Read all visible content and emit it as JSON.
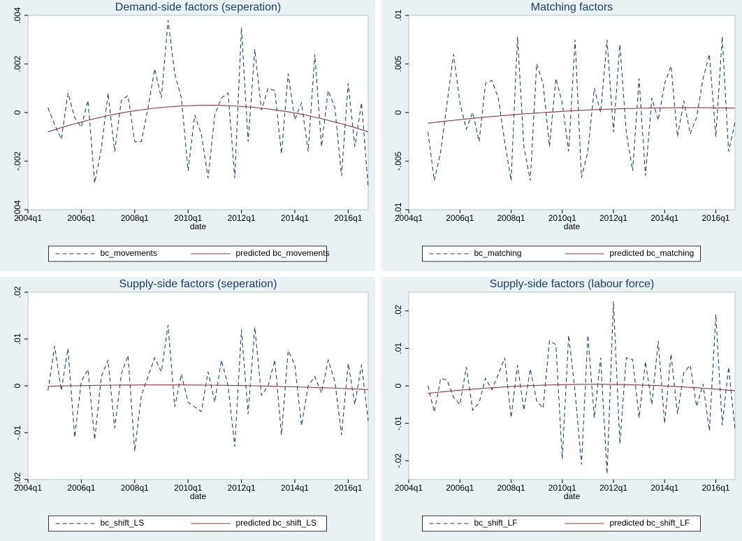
{
  "chart_data": [
    {
      "type": "line",
      "title": "Demand-side factors (seperation)",
      "x_label": "date",
      "x": [
        "2004q4",
        "2005q1",
        "2005q2",
        "2005q3",
        "2005q4",
        "2006q1",
        "2006q2",
        "2006q3",
        "2006q4",
        "2007q1",
        "2007q2",
        "2007q3",
        "2007q4",
        "2008q1",
        "2008q2",
        "2008q3",
        "2008q4",
        "2009q1",
        "2009q2",
        "2009q3",
        "2009q4",
        "2010q1",
        "2010q2",
        "2010q3",
        "2010q4",
        "2011q1",
        "2011q2",
        "2011q3",
        "2011q4",
        "2012q1",
        "2012q2",
        "2012q3",
        "2012q4",
        "2013q1",
        "2013q2",
        "2013q3",
        "2013q4",
        "2014q1",
        "2014q2",
        "2014q3",
        "2014q4",
        "2015q1",
        "2015q2",
        "2015q3",
        "2015q4",
        "2016q1",
        "2016q2",
        "2016q3",
        "2016q4"
      ],
      "xlim": [
        "2004q1",
        "2016q4"
      ],
      "xticks": [
        "2004q1",
        "2006q1",
        "2008q1",
        "2010q1",
        "2012q1",
        "2014q1",
        "2016q1"
      ],
      "ylim": [
        -0.004,
        0.004
      ],
      "yticks": [
        {
          "value": -0.004,
          "label": "-.004"
        },
        {
          "value": -0.002,
          "label": "-.002"
        },
        0,
        {
          "value": 0.002,
          "label": ".002"
        },
        {
          "value": 0.004,
          "label": ".004"
        }
      ],
      "grid": false,
      "series": [
        {
          "name": "bc_movements",
          "color": "#1a476f",
          "dashed": true,
          "values": [
            0.0002,
            -0.0005,
            -0.0011,
            0.0008,
            -0.0002,
            -0.0006,
            0.0005,
            -0.0029,
            -0.0015,
            0.0008,
            -0.0016,
            0.0005,
            0.0007,
            -0.0012,
            -0.0012,
            0.0002,
            0.0018,
            0.0006,
            0.0038,
            0.0016,
            0.0006,
            -0.0024,
            -0.0001,
            -0.0009,
            -0.0027,
            -0.0001,
            0.0006,
            0.0008,
            -0.0027,
            0.0035,
            -0.0012,
            0.0026,
            0.0001,
            0.001,
            0.0009,
            -0.0017,
            0.0016,
            -0.0003,
            0.0004,
            -0.0016,
            0.0024,
            -0.0014,
            0.0009,
            0.0002,
            -0.0026,
            0.0012,
            -0.0014,
            0.0004,
            -0.0031
          ]
        },
        {
          "name": "predicted bc_movements",
          "color": "#90353b",
          "dashed": false,
          "values": [
            -0.00079,
            -0.00071,
            -0.00062,
            -0.00054,
            -0.00046,
            -0.00039,
            -0.00032,
            -0.00025,
            -0.00019,
            -0.00013,
            -7e-05,
            -2e-05,
            3e-05,
            7e-05,
            0.00011,
            0.00015,
            0.00018,
            0.00021,
            0.00023,
            0.00025,
            0.00027,
            0.00028,
            0.00029,
            0.0003,
            0.0003,
            0.0003,
            0.00029,
            0.00028,
            0.00027,
            0.00025,
            0.00023,
            0.00021,
            0.00018,
            0.00015,
            0.00011,
            7e-05,
            3e-05,
            -2e-05,
            -7e-05,
            -0.00013,
            -0.00019,
            -0.00025,
            -0.00032,
            -0.00039,
            -0.00046,
            -0.00054,
            -0.00062,
            -0.00071,
            -0.00079
          ]
        }
      ]
    },
    {
      "type": "line",
      "title": "Matching factors",
      "x_label": "date",
      "x": [
        "2004q4",
        "2005q1",
        "2005q2",
        "2005q3",
        "2005q4",
        "2006q1",
        "2006q2",
        "2006q3",
        "2006q4",
        "2007q1",
        "2007q2",
        "2007q3",
        "2007q4",
        "2008q1",
        "2008q2",
        "2008q3",
        "2008q4",
        "2009q1",
        "2009q2",
        "2009q3",
        "2009q4",
        "2010q1",
        "2010q2",
        "2010q3",
        "2010q4",
        "2011q1",
        "2011q2",
        "2011q3",
        "2011q4",
        "2012q1",
        "2012q2",
        "2012q3",
        "2012q4",
        "2013q1",
        "2013q2",
        "2013q3",
        "2013q4",
        "2014q1",
        "2014q2",
        "2014q3",
        "2014q4",
        "2015q1",
        "2015q2",
        "2015q3",
        "2015q4",
        "2016q1",
        "2016q2",
        "2016q3",
        "2016q4"
      ],
      "xlim": [
        "2004q1",
        "2016q4"
      ],
      "xticks": [
        "2004q1",
        "2006q1",
        "2008q1",
        "2010q1",
        "2012q1",
        "2014q1",
        "2016q1"
      ],
      "ylim": [
        -0.01,
        0.01
      ],
      "yticks": [
        {
          "value": -0.01,
          "label": "-.01"
        },
        {
          "value": -0.005,
          "label": "-.005"
        },
        0,
        {
          "value": 0.005,
          "label": ".005"
        },
        {
          "value": 0.01,
          "label": ".01"
        }
      ],
      "grid": false,
      "series": [
        {
          "name": "bc_matching",
          "color": "#1a476f",
          "dashed": true,
          "values": [
            -0.002,
            -0.007,
            -0.004,
            0.001,
            0.006,
            0.001,
            -0.0017,
            0,
            -0.003,
            0.003,
            0.0033,
            0.0015,
            -0.003,
            -0.007,
            0.0078,
            -0.0035,
            -0.007,
            0.005,
            0.003,
            -0.0035,
            0.0035,
            0.001,
            -0.004,
            0.0075,
            -0.0067,
            -0.004,
            0.0025,
            0,
            0.0075,
            -0.002,
            0.007,
            -0.002,
            -0.006,
            0.0035,
            -0.0065,
            0.0015,
            -0.0008,
            0.003,
            0.0048,
            -0.0025,
            0.0012,
            -0.0022,
            -0.0005,
            0.0035,
            0.006,
            -0.0025,
            0.0078,
            -0.004,
            -0.001
          ]
        },
        {
          "name": "predicted bc_matching",
          "color": "#90353b",
          "dashed": false,
          "values": [
            -0.0011,
            -0.00102,
            -0.00094,
            -0.00087,
            -0.0008,
            -0.00073,
            -0.00066,
            -0.0006,
            -0.00053,
            -0.00047,
            -0.00041,
            -0.00036,
            -0.0003,
            -0.00025,
            -0.00019,
            -0.00014,
            -9e-05,
            -5e-05,
            0,
            4e-05,
            8e-05,
            0.00012,
            0.00016,
            0.00019,
            0.00023,
            0.00026,
            0.00029,
            0.00031,
            0.00034,
            0.00036,
            0.00039,
            0.00041,
            0.00042,
            0.00044,
            0.00045,
            0.00047,
            0.00048,
            0.00048,
            0.00049,
            0.0005,
            0.0005,
            0.0005,
            0.0005,
            0.0005,
            0.00049,
            0.00048,
            0.00048,
            0.00047,
            0.00045
          ]
        }
      ]
    },
    {
      "type": "line",
      "title": "Supply-side factors (seperation)",
      "x_label": "date",
      "x": [
        "2004q4",
        "2005q1",
        "2005q2",
        "2005q3",
        "2005q4",
        "2006q1",
        "2006q2",
        "2006q3",
        "2006q4",
        "2007q1",
        "2007q2",
        "2007q3",
        "2007q4",
        "2008q1",
        "2008q2",
        "2008q3",
        "2008q4",
        "2009q1",
        "2009q2",
        "2009q3",
        "2009q4",
        "2010q1",
        "2010q2",
        "2010q3",
        "2010q4",
        "2011q1",
        "2011q2",
        "2011q3",
        "2011q4",
        "2012q1",
        "2012q2",
        "2012q3",
        "2012q4",
        "2013q1",
        "2013q2",
        "2013q3",
        "2013q4",
        "2014q1",
        "2014q2",
        "2014q3",
        "2014q4",
        "2015q1",
        "2015q2",
        "2015q3",
        "2015q4",
        "2016q1",
        "2016q2",
        "2016q3",
        "2016q4"
      ],
      "xlim": [
        "2004q1",
        "2016q4"
      ],
      "xticks": [
        "2004q1",
        "2006q1",
        "2008q1",
        "2010q1",
        "2012q1",
        "2014q1",
        "2016q1"
      ],
      "ylim": [
        -0.02,
        0.02
      ],
      "yticks": [
        {
          "value": -0.02,
          "label": "-.02"
        },
        {
          "value": -0.01,
          "label": "-.01"
        },
        0,
        {
          "value": 0.01,
          "label": ".01"
        },
        {
          "value": 0.02,
          "label": ".02"
        }
      ],
      "grid": false,
      "series": [
        {
          "name": "bc_shift_LS",
          "color": "#1a476f",
          "dashed": true,
          "values": [
            -0.001,
            0.0085,
            -0.001,
            0.008,
            -0.011,
            0.001,
            0.0035,
            -0.0115,
            0.002,
            0.0055,
            -0.009,
            0.0025,
            0.0065,
            -0.014,
            -0.002,
            0.002,
            0.006,
            0.003,
            0.013,
            -0.0045,
            0.0025,
            -0.0035,
            -0.0045,
            -0.0055,
            0.003,
            -0.0035,
            0.0055,
            0,
            -0.013,
            0.012,
            -0.006,
            0.0125,
            -0.002,
            0,
            0.0055,
            -0.0105,
            0.0075,
            0.0045,
            -0.0085,
            0,
            0.002,
            -0.0015,
            0.0055,
            0.001,
            -0.0105,
            0.0048,
            -0.004,
            0.0045,
            -0.0075
          ]
        },
        {
          "name": "predicted bc_shift_LS",
          "color": "#90353b",
          "dashed": false,
          "values": [
            -0.0001,
            -7e-05,
            -3e-05,
            0,
            2e-05,
            5e-05,
            7e-05,
            0.0001,
            0.00012,
            0.00013,
            0.00015,
            0.00016,
            0.00017,
            0.00018,
            0.00019,
            0.0002,
            0.0002,
            0.0002,
            0.0002,
            0.0002,
            0.00019,
            0.00018,
            0.00017,
            0.00016,
            0.00015,
            0.00013,
            0.00012,
            0.0001,
            7e-05,
            5e-05,
            2e-05,
            0,
            -3e-05,
            -7e-05,
            -0.0001,
            -0.00014,
            -0.00018,
            -0.00022,
            -0.00026,
            -0.0003,
            -0.00035,
            -0.0004,
            -0.00045,
            -0.0005,
            -0.00056,
            -0.00062,
            -0.00067,
            -0.00074,
            -0.0008
          ]
        }
      ]
    },
    {
      "type": "line",
      "title": "Supply-side factors (labour force)",
      "x_label": "date",
      "x": [
        "2004q4",
        "2005q1",
        "2005q2",
        "2005q3",
        "2005q4",
        "2006q1",
        "2006q2",
        "2006q3",
        "2006q4",
        "2007q1",
        "2007q2",
        "2007q3",
        "2007q4",
        "2008q1",
        "2008q2",
        "2008q3",
        "2008q4",
        "2009q1",
        "2009q2",
        "2009q3",
        "2009q4",
        "2010q1",
        "2010q2",
        "2010q3",
        "2010q4",
        "2011q1",
        "2011q2",
        "2011q3",
        "2011q4",
        "2012q1",
        "2012q2",
        "2012q3",
        "2012q4",
        "2013q1",
        "2013q2",
        "2013q3",
        "2013q4",
        "2014q1",
        "2014q2",
        "2014q3",
        "2014q4",
        "2015q1",
        "2015q2",
        "2015q3",
        "2015q4",
        "2016q1",
        "2016q2",
        "2016q3",
        "2016q4"
      ],
      "xlim": [
        "2004q1",
        "2016q4"
      ],
      "xticks": [
        "2004q1",
        "2006q1",
        "2008q1",
        "2010q1",
        "2012q1",
        "2014q1",
        "2016q1"
      ],
      "ylim": [
        -0.025,
        0.025
      ],
      "yticks": [
        {
          "value": -0.02,
          "label": "-.02"
        },
        {
          "value": -0.01,
          "label": "-.01"
        },
        0,
        {
          "value": 0.01,
          "label": ".01"
        },
        {
          "value": 0.02,
          "label": ".02"
        }
      ],
      "grid": false,
      "series": [
        {
          "name": "bc_shift_LF",
          "color": "#1a476f",
          "dashed": true,
          "values": [
            0,
            -0.007,
            0.002,
            0.0015,
            -0.003,
            -0.005,
            0.005,
            -0.0065,
            -0.0045,
            0.002,
            -0.001,
            0.003,
            0.0075,
            -0.0085,
            0.0055,
            -0.0065,
            0.0045,
            -0.004,
            -0.006,
            0.012,
            0.011,
            -0.0195,
            0.0135,
            -0.0015,
            -0.021,
            0.0135,
            -0.0085,
            0.0075,
            -0.0235,
            0.0225,
            -0.0155,
            0.0075,
            0.007,
            -0.0085,
            0.0065,
            -0.005,
            0.012,
            -0.01,
            0.0085,
            -0.0075,
            0.0035,
            0.0055,
            -0.0055,
            0.0005,
            -0.012,
            0.019,
            -0.0105,
            0.005,
            -0.0115
          ]
        },
        {
          "name": "predicted bc_shift_LF",
          "color": "#90353b",
          "dashed": false,
          "values": [
            -0.002,
            -0.00182,
            -0.00164,
            -0.00148,
            -0.00132,
            -0.00117,
            -0.00102,
            -0.00088,
            -0.00075,
            -0.00063,
            -0.00051,
            -0.0004,
            -0.0003,
            -0.0002,
            -0.00011,
            -3e-05,
            5e-05,
            0.00011,
            0.00017,
            0.00023,
            0.00027,
            0.00031,
            0.00034,
            0.00037,
            0.00039,
            0.0004,
            0.0004,
            0.0004,
            0.00039,
            0.00037,
            0.00034,
            0.00031,
            0.00027,
            0.00023,
            0.00017,
            0.00011,
            5e-05,
            -3e-05,
            -0.00011,
            -0.0002,
            -0.0003,
            -0.0004,
            -0.00051,
            -0.00063,
            -0.00075,
            -0.00088,
            -0.00102,
            -0.00117,
            -0.00132
          ]
        }
      ]
    }
  ]
}
